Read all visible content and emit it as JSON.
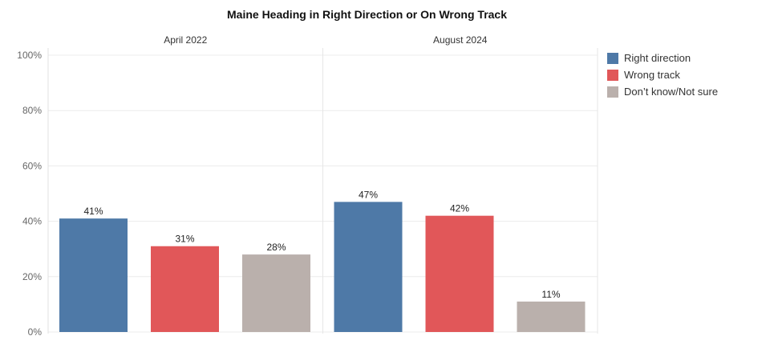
{
  "chart_data": {
    "type": "bar",
    "title": "Maine Heading in Right Direction or On Wrong Track",
    "panels": [
      "April 2022",
      "August 2024"
    ],
    "categories": [
      "Right direction",
      "Wrong track",
      "Don’t know/Not sure"
    ],
    "series": [
      {
        "panel": "April 2022",
        "values": [
          41,
          31,
          28
        ],
        "labels": [
          "41%",
          "31%",
          "28%"
        ]
      },
      {
        "panel": "August 2024",
        "values": [
          47,
          42,
          11
        ],
        "labels": [
          "47%",
          "42%",
          "11%"
        ]
      }
    ],
    "colors": [
      "#4e79a7",
      "#e15759",
      "#bab0ac"
    ],
    "ylim": [
      0,
      100
    ],
    "yticks": [
      0,
      20,
      40,
      60,
      80,
      100
    ],
    "ytick_labels": [
      "0%",
      "20%",
      "40%",
      "60%",
      "80%",
      "100%"
    ],
    "grid": true,
    "legend_position": "right",
    "xlabel": "",
    "ylabel": ""
  }
}
